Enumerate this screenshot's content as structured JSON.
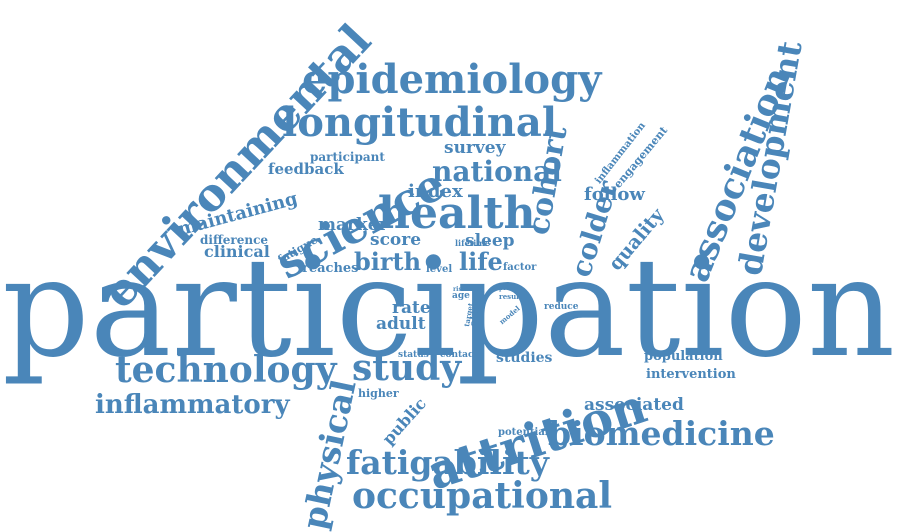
{
  "color": "#4a86b9",
  "words": {
    "participation": "participation",
    "environmental": "environmental",
    "epidemiology": "epidemiology",
    "longitudinal": "longitudinal",
    "science": "science",
    "health": "health",
    "cohort": "cohort",
    "colder": "colder",
    "association": "association",
    "development": "development",
    "national": "national",
    "technology": "technology",
    "inflammatory": "inflammatory",
    "study": "study",
    "attrition": "attrition",
    "biomedicine": "biomedicine",
    "fatigability": "fatigability",
    "occupational": "occupational",
    "physical": "physical",
    "birth": "birth",
    "life": "life",
    "sleep": "sleep",
    "score": "score",
    "marker": "marker",
    "index": "index",
    "follow": "follow",
    "quality": "quality",
    "survey": "survey",
    "participant": "participant",
    "feedback": "feedback",
    "maintaining": "maintaining",
    "difference": "difference",
    "clinical": "clinical",
    "fatigue": "fatigue",
    "reaches": "reaches",
    "rate": "rate",
    "adult": "adult",
    "level": "level",
    "lifetime": "lifetime",
    "factor": "factor",
    "risk": "risk",
    "age": "age",
    "obesity": "obesity",
    "target": "target",
    "prior": "prior",
    "result": "result",
    "model": "model",
    "reduce": "reduce",
    "inflammation": "inflammation",
    "engagement": "engagement",
    "status": "status",
    "contact": "contact",
    "studies": "studies",
    "population": "population",
    "intervention": "intervention",
    "higher": "higher",
    "public": "public",
    "associated": "associated",
    "potential": "potential"
  }
}
